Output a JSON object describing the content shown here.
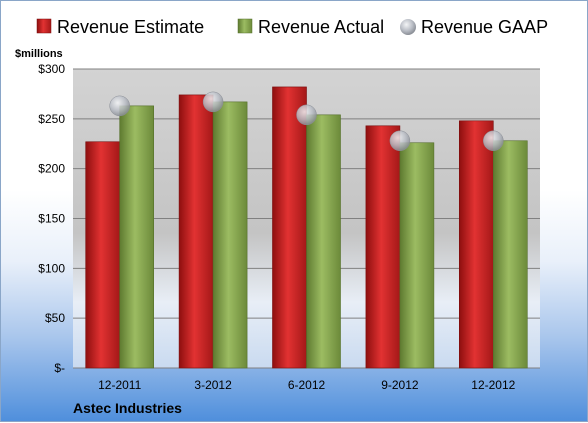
{
  "chart_data": {
    "type": "bar",
    "title": "",
    "subtitle": "Astec Industries",
    "ylabel": "$millions",
    "xlabel": "",
    "categories": [
      "12-2011",
      "3-2012",
      "6-2012",
      "9-2012",
      "12-2012"
    ],
    "series": [
      {
        "name": "Revenue Estimate",
        "kind": "bar",
        "color": "#d42020",
        "values": [
          227,
          274,
          282,
          243,
          248
        ]
      },
      {
        "name": "Revenue Actual",
        "kind": "bar",
        "color": "#8aaa52",
        "values": [
          263,
          267,
          254,
          226,
          228
        ]
      },
      {
        "name": "Revenue GAAP",
        "kind": "marker",
        "color": "#b8bcc4",
        "values": [
          263,
          267,
          254,
          228,
          228
        ]
      }
    ],
    "ylim": [
      0,
      300
    ],
    "yticks": [
      0,
      50,
      100,
      150,
      200,
      250,
      300
    ],
    "ytick_labels": [
      "$-",
      "$50",
      "$100",
      "$150",
      "$200",
      "$250",
      "$300"
    ],
    "grid": true,
    "legend": "top"
  }
}
